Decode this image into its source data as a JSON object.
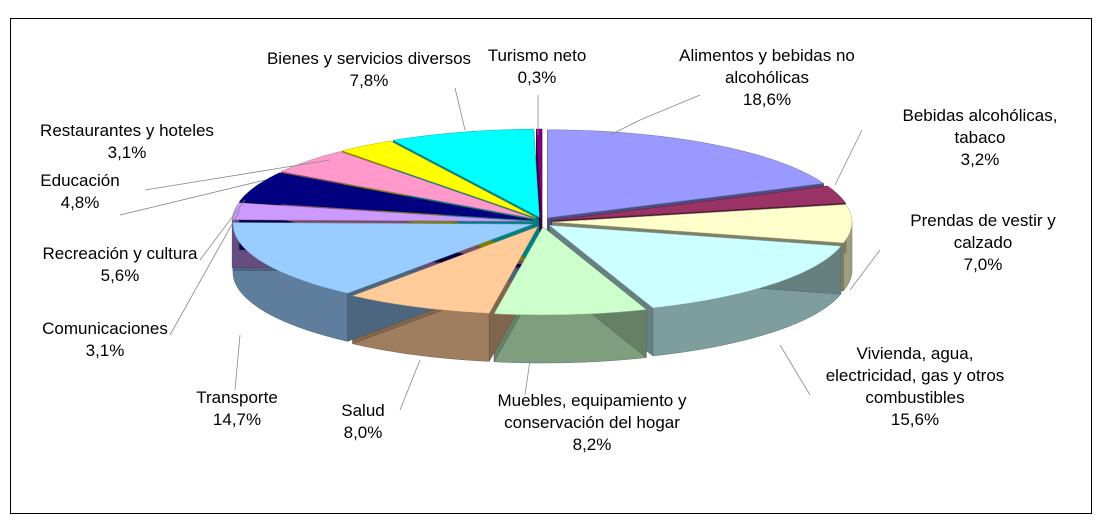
{
  "chart_data": {
    "type": "pie",
    "categories": [
      "Alimentos y bebidas no alcohólicas",
      "Bebidas alcohólicas, tabaco",
      "Prendas de vestir y calzado",
      "Vivienda, agua, electricidad, gas y otros combustibles",
      "Muebles, equipamiento y conservación del hogar",
      "Salud",
      "Transporte",
      "Comunicaciones",
      "Recreación y cultura",
      "Educación",
      "Restaurantes y hoteles",
      "Bienes y servicios diversos",
      "Turismo neto"
    ],
    "values": [
      18.6,
      3.2,
      7.0,
      15.6,
      8.2,
      8.0,
      14.7,
      3.1,
      5.6,
      4.8,
      3.1,
      7.8,
      0.3
    ],
    "value_labels": [
      "18,6%",
      "3,2%",
      "7,0%",
      "15,6%",
      "8,2%",
      "8,0%",
      "14,7%",
      "3,1%",
      "5,6%",
      "4,8%",
      "3,1%",
      "7,8%",
      "0,3%"
    ],
    "colors": [
      "#9999ff",
      "#993366",
      "#ffffcc",
      "#ccffff",
      "#ccffcc",
      "#ffcc99",
      "#99ccff",
      "#cc99ff",
      "#000080",
      "#ff99cc",
      "#ffff00",
      "#00ffff",
      "#800080"
    ]
  }
}
